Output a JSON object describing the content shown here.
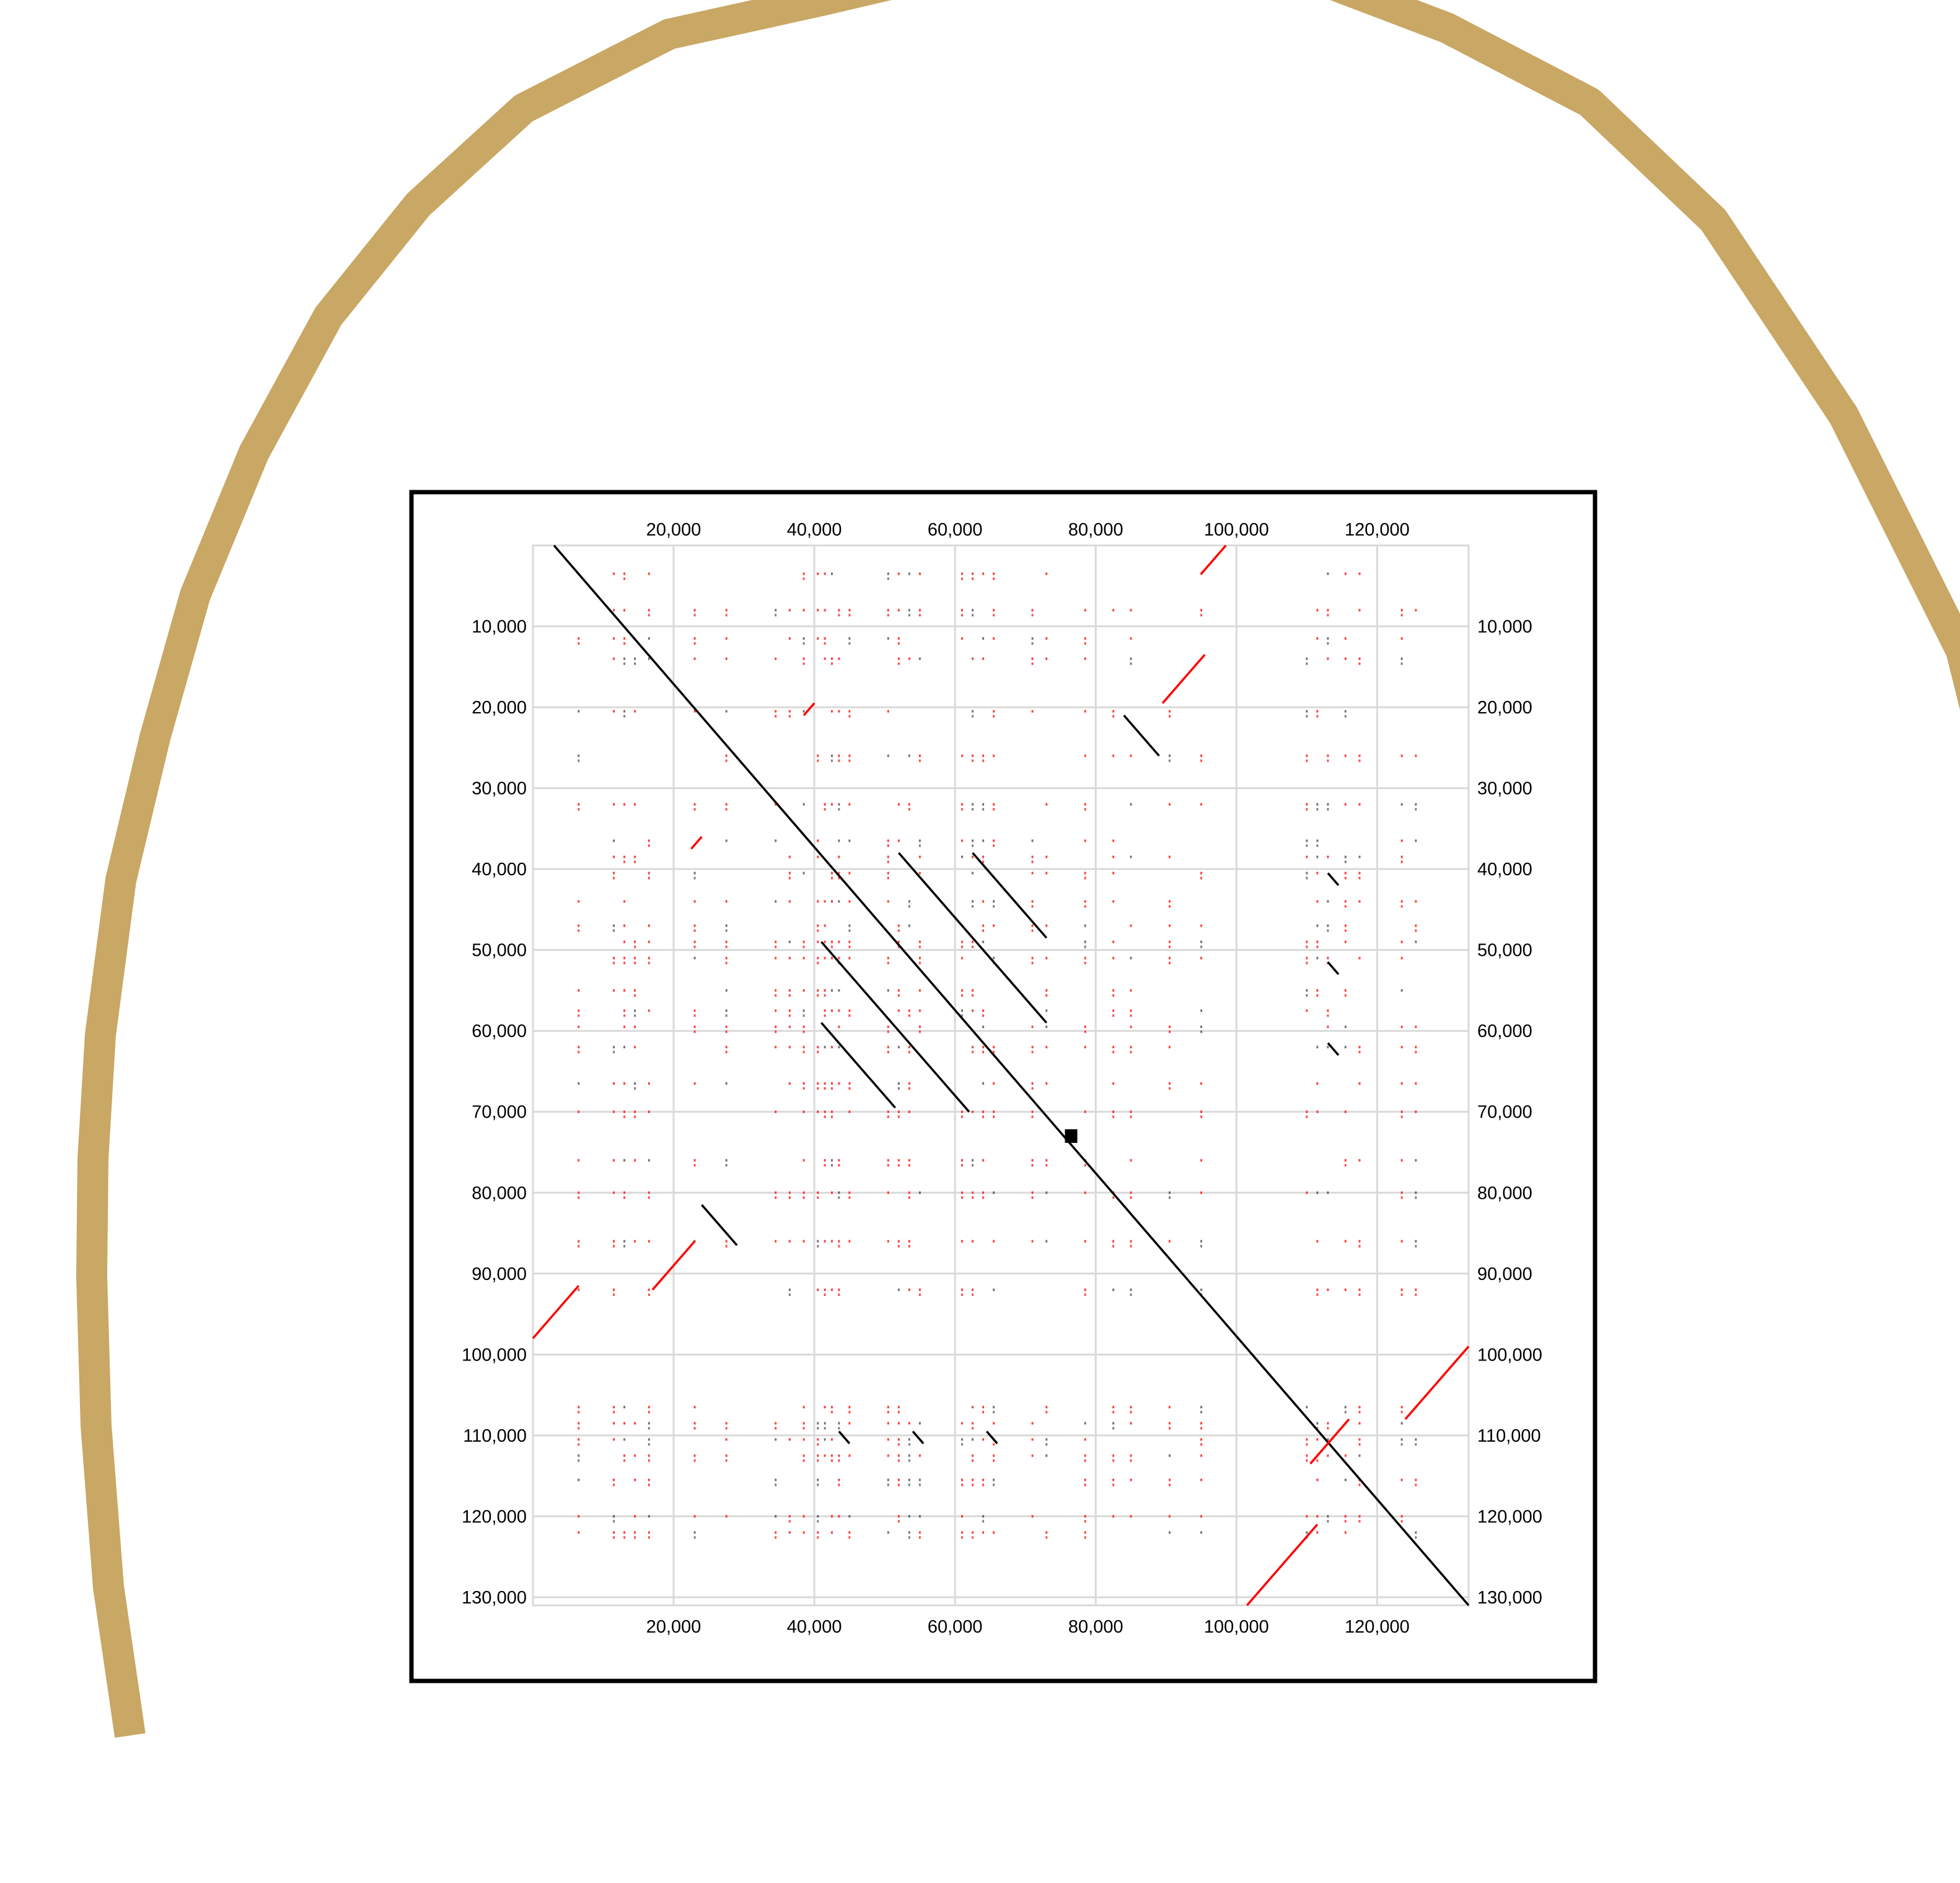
{
  "colors": {
    "background": "#ffffff",
    "arc": "#c9a764",
    "frame": "#000000",
    "grid": "#d9d9d9",
    "forward_match": "#000000",
    "reverse_match": "#ff0000"
  },
  "chart_data": {
    "type": "scatter",
    "title": "",
    "xlabel": "",
    "ylabel": "",
    "xlim": [
      0,
      133000
    ],
    "ylim": [
      0,
      131000
    ],
    "y_axis_inverted": true,
    "grid": true,
    "x_ticks": [
      20000,
      40000,
      60000,
      80000,
      100000,
      120000
    ],
    "x_tick_labels": [
      "20,000",
      "40,000",
      "60,000",
      "80,000",
      "100,000",
      "120,000"
    ],
    "y_ticks": [
      10000,
      20000,
      30000,
      40000,
      50000,
      60000,
      70000,
      80000,
      90000,
      100000,
      110000,
      120000,
      130000
    ],
    "y_tick_labels": [
      "10,000",
      "20,000",
      "30,000",
      "40,000",
      "50,000",
      "60,000",
      "70,000",
      "80,000",
      "90,000",
      "100,000",
      "110,000",
      "120,000",
      "130,000"
    ],
    "x_tick_positions": [
      "top",
      "bottom"
    ],
    "y_tick_positions": [
      "left",
      "right"
    ],
    "forward_segments": [
      {
        "x1": 3000,
        "y1": 0,
        "x2": 133000,
        "y2": 131000
      },
      {
        "x1": 52000,
        "y1": 38000,
        "x2": 73000,
        "y2": 59000
      },
      {
        "x1": 62500,
        "y1": 38000,
        "x2": 73000,
        "y2": 48500
      },
      {
        "x1": 41000,
        "y1": 49000,
        "x2": 62000,
        "y2": 70000
      },
      {
        "x1": 41000,
        "y1": 59000,
        "x2": 51500,
        "y2": 69500
      },
      {
        "x1": 84000,
        "y1": 21000,
        "x2": 89000,
        "y2": 26000
      },
      {
        "x1": 24000,
        "y1": 81500,
        "x2": 29000,
        "y2": 86500
      },
      {
        "x1": 113000,
        "y1": 40500,
        "x2": 114500,
        "y2": 42000
      },
      {
        "x1": 113000,
        "y1": 51500,
        "x2": 114500,
        "y2": 53000
      },
      {
        "x1": 113000,
        "y1": 61500,
        "x2": 114500,
        "y2": 63000
      },
      {
        "x1": 43500,
        "y1": 109500,
        "x2": 45000,
        "y2": 111000
      },
      {
        "x1": 54000,
        "y1": 109500,
        "x2": 55500,
        "y2": 111000
      },
      {
        "x1": 64500,
        "y1": 109500,
        "x2": 66000,
        "y2": 111000
      }
    ],
    "reverse_segments": [
      {
        "x1": 0,
        "y1": 98000,
        "x2": 6500,
        "y2": 91500
      },
      {
        "x1": 17000,
        "y1": 92000,
        "x2": 23000,
        "y2": 86000
      },
      {
        "x1": 22500,
        "y1": 37500,
        "x2": 24000,
        "y2": 36000
      },
      {
        "x1": 38500,
        "y1": 21000,
        "x2": 40000,
        "y2": 19500
      },
      {
        "x1": 89500,
        "y1": 19500,
        "x2": 95500,
        "y2": 13500
      },
      {
        "x1": 95000,
        "y1": 3500,
        "x2": 98500,
        "y2": 0
      },
      {
        "x1": 124000,
        "y1": 108000,
        "x2": 133000,
        "y2": 99000
      },
      {
        "x1": 110500,
        "y1": 113500,
        "x2": 116000,
        "y2": 108000
      },
      {
        "x1": 101500,
        "y1": 131000,
        "x2": 111500,
        "y2": 121000
      }
    ],
    "highlight_points": [
      {
        "x": 76500,
        "y": 73000
      }
    ]
  }
}
